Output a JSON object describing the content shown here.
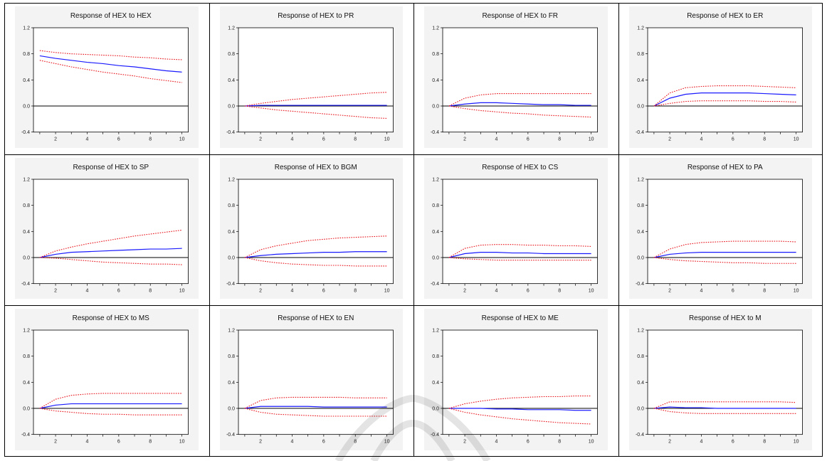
{
  "chart_data": [
    {
      "type": "line",
      "title": "Response of HEX to HEX",
      "x": [
        1,
        2,
        3,
        4,
        5,
        6,
        7,
        8,
        9,
        10
      ],
      "ylim": [
        -0.4,
        1.2
      ],
      "xticks": [
        2,
        4,
        6,
        8,
        10
      ],
      "yticks": [
        -0.4,
        0.0,
        0.4,
        0.8,
        1.2
      ],
      "ytick_labels": [
        "-0.4",
        "0.0",
        "0.4",
        "0.8",
        "1.2"
      ],
      "series": [
        {
          "role": "response",
          "values": [
            0.77,
            0.73,
            0.7,
            0.67,
            0.65,
            0.62,
            0.6,
            0.57,
            0.54,
            0.52
          ]
        },
        {
          "role": "upper",
          "values": [
            0.85,
            0.82,
            0.8,
            0.79,
            0.78,
            0.77,
            0.75,
            0.74,
            0.72,
            0.71
          ]
        },
        {
          "role": "lower",
          "values": [
            0.7,
            0.65,
            0.6,
            0.56,
            0.52,
            0.49,
            0.46,
            0.42,
            0.39,
            0.36
          ]
        }
      ]
    },
    {
      "type": "line",
      "title": "Response of HEX to PR",
      "x": [
        1,
        2,
        3,
        4,
        5,
        6,
        7,
        8,
        9,
        10
      ],
      "ylim": [
        -0.4,
        1.2
      ],
      "xticks": [
        2,
        4,
        6,
        8,
        10
      ],
      "yticks": [
        -0.4,
        0.0,
        0.4,
        0.8,
        1.2
      ],
      "ytick_labels": [
        "-0.4",
        "0.0",
        "0.4",
        "0.8",
        "1.2"
      ],
      "series": [
        {
          "role": "response",
          "values": [
            0.0,
            0.01,
            0.01,
            0.01,
            0.01,
            0.01,
            0.01,
            0.01,
            0.01,
            0.01
          ]
        },
        {
          "role": "upper",
          "values": [
            0.0,
            0.04,
            0.07,
            0.1,
            0.12,
            0.14,
            0.16,
            0.18,
            0.2,
            0.21
          ]
        },
        {
          "role": "lower",
          "values": [
            0.0,
            -0.03,
            -0.06,
            -0.08,
            -0.1,
            -0.12,
            -0.14,
            -0.16,
            -0.18,
            -0.19
          ]
        }
      ]
    },
    {
      "type": "line",
      "title": "Response of HEX to FR",
      "x": [
        1,
        2,
        3,
        4,
        5,
        6,
        7,
        8,
        9,
        10
      ],
      "ylim": [
        -0.4,
        1.2
      ],
      "xticks": [
        2,
        4,
        6,
        8,
        10
      ],
      "yticks": [
        -0.4,
        0.0,
        0.4,
        0.8,
        1.2
      ],
      "ytick_labels": [
        "-0.4",
        "0.0",
        "0.4",
        "0.8",
        "1.2"
      ],
      "series": [
        {
          "role": "response",
          "values": [
            0.0,
            0.03,
            0.05,
            0.05,
            0.04,
            0.03,
            0.02,
            0.02,
            0.01,
            0.01
          ]
        },
        {
          "role": "upper",
          "values": [
            0.0,
            0.12,
            0.17,
            0.19,
            0.19,
            0.19,
            0.19,
            0.19,
            0.19,
            0.19
          ]
        },
        {
          "role": "lower",
          "values": [
            0.0,
            -0.04,
            -0.07,
            -0.09,
            -0.11,
            -0.12,
            -0.14,
            -0.15,
            -0.16,
            -0.17
          ]
        }
      ]
    },
    {
      "type": "line",
      "title": "Response of HEX to ER",
      "x": [
        1,
        2,
        3,
        4,
        5,
        6,
        7,
        8,
        9,
        10
      ],
      "ylim": [
        -0.4,
        1.2
      ],
      "xticks": [
        2,
        4,
        6,
        8,
        10
      ],
      "yticks": [
        -0.4,
        0.0,
        0.4,
        0.8,
        1.2
      ],
      "ytick_labels": [
        "-0.4",
        "0.0",
        "0.4",
        "0.8",
        "1.2"
      ],
      "series": [
        {
          "role": "response",
          "values": [
            0.0,
            0.12,
            0.18,
            0.2,
            0.2,
            0.2,
            0.2,
            0.19,
            0.18,
            0.17
          ]
        },
        {
          "role": "upper",
          "values": [
            0.0,
            0.2,
            0.28,
            0.3,
            0.31,
            0.31,
            0.31,
            0.3,
            0.29,
            0.28
          ]
        },
        {
          "role": "lower",
          "values": [
            0.0,
            0.04,
            0.07,
            0.08,
            0.08,
            0.08,
            0.08,
            0.07,
            0.07,
            0.06
          ]
        }
      ]
    },
    {
      "type": "line",
      "title": "Response of HEX to SP",
      "x": [
        1,
        2,
        3,
        4,
        5,
        6,
        7,
        8,
        9,
        10
      ],
      "ylim": [
        -0.4,
        1.2
      ],
      "xticks": [
        2,
        4,
        6,
        8,
        10
      ],
      "yticks": [
        -0.4,
        0.0,
        0.4,
        0.8,
        1.2
      ],
      "ytick_labels": [
        "-0.4",
        "0.0",
        "0.4",
        "0.8",
        "1.2"
      ],
      "series": [
        {
          "role": "response",
          "values": [
            0.0,
            0.05,
            0.08,
            0.09,
            0.1,
            0.11,
            0.12,
            0.13,
            0.13,
            0.14
          ]
        },
        {
          "role": "upper",
          "values": [
            0.0,
            0.1,
            0.16,
            0.21,
            0.25,
            0.29,
            0.33,
            0.36,
            0.39,
            0.42
          ]
        },
        {
          "role": "lower",
          "values": [
            0.0,
            -0.01,
            -0.03,
            -0.05,
            -0.07,
            -0.08,
            -0.09,
            -0.1,
            -0.1,
            -0.11
          ]
        }
      ]
    },
    {
      "type": "line",
      "title": "Response of HEX to BGM",
      "x": [
        1,
        2,
        3,
        4,
        5,
        6,
        7,
        8,
        9,
        10
      ],
      "ylim": [
        -0.4,
        1.2
      ],
      "xticks": [
        2,
        4,
        6,
        8,
        10
      ],
      "yticks": [
        -0.4,
        0.0,
        0.4,
        0.8,
        1.2
      ],
      "ytick_labels": [
        "-0.4",
        "0.0",
        "0.4",
        "0.8",
        "1.2"
      ],
      "series": [
        {
          "role": "response",
          "values": [
            0.0,
            0.03,
            0.05,
            0.06,
            0.07,
            0.08,
            0.08,
            0.09,
            0.09,
            0.09
          ]
        },
        {
          "role": "upper",
          "values": [
            0.0,
            0.12,
            0.18,
            0.22,
            0.26,
            0.28,
            0.3,
            0.31,
            0.32,
            0.33
          ]
        },
        {
          "role": "lower",
          "values": [
            0.0,
            -0.05,
            -0.08,
            -0.1,
            -0.11,
            -0.12,
            -0.12,
            -0.13,
            -0.13,
            -0.13
          ]
        }
      ]
    },
    {
      "type": "line",
      "title": "Response of HEX to CS",
      "x": [
        1,
        2,
        3,
        4,
        5,
        6,
        7,
        8,
        9,
        10
      ],
      "ylim": [
        -0.4,
        1.2
      ],
      "xticks": [
        2,
        4,
        6,
        8,
        10
      ],
      "yticks": [
        -0.4,
        0.0,
        0.4,
        0.8,
        1.2
      ],
      "ytick_labels": [
        "-0.4",
        "0.0",
        "0.4",
        "0.8",
        "1.2"
      ],
      "series": [
        {
          "role": "response",
          "values": [
            0.0,
            0.06,
            0.08,
            0.08,
            0.07,
            0.07,
            0.06,
            0.06,
            0.06,
            0.06
          ]
        },
        {
          "role": "upper",
          "values": [
            0.0,
            0.14,
            0.19,
            0.2,
            0.2,
            0.19,
            0.19,
            0.18,
            0.18,
            0.17
          ]
        },
        {
          "role": "lower",
          "values": [
            0.0,
            -0.02,
            -0.03,
            -0.04,
            -0.04,
            -0.04,
            -0.04,
            -0.04,
            -0.04,
            -0.04
          ]
        }
      ]
    },
    {
      "type": "line",
      "title": "Response of HEX to PA",
      "x": [
        1,
        2,
        3,
        4,
        5,
        6,
        7,
        8,
        9,
        10
      ],
      "ylim": [
        -0.4,
        1.2
      ],
      "xticks": [
        2,
        4,
        6,
        8,
        10
      ],
      "yticks": [
        -0.4,
        0.0,
        0.4,
        0.8,
        1.2
      ],
      "ytick_labels": [
        "-0.4",
        "0.0",
        "0.4",
        "0.8",
        "1.2"
      ],
      "series": [
        {
          "role": "response",
          "values": [
            0.0,
            0.05,
            0.07,
            0.08,
            0.08,
            0.08,
            0.08,
            0.08,
            0.08,
            0.08
          ]
        },
        {
          "role": "upper",
          "values": [
            0.0,
            0.13,
            0.2,
            0.23,
            0.24,
            0.25,
            0.25,
            0.25,
            0.25,
            0.24
          ]
        },
        {
          "role": "lower",
          "values": [
            0.0,
            -0.03,
            -0.05,
            -0.06,
            -0.07,
            -0.08,
            -0.08,
            -0.09,
            -0.09,
            -0.09
          ]
        }
      ]
    },
    {
      "type": "line",
      "title": "Response of HEX to MS",
      "x": [
        1,
        2,
        3,
        4,
        5,
        6,
        7,
        8,
        9,
        10
      ],
      "ylim": [
        -0.4,
        1.2
      ],
      "xticks": [
        2,
        4,
        6,
        8,
        10
      ],
      "yticks": [
        -0.4,
        0.0,
        0.4,
        0.8,
        1.2
      ],
      "ytick_labels": [
        "-0.4",
        "0.0",
        "0.4",
        "0.8",
        "1.2"
      ],
      "series": [
        {
          "role": "response",
          "values": [
            0.0,
            0.05,
            0.07,
            0.07,
            0.07,
            0.07,
            0.07,
            0.07,
            0.07,
            0.07
          ]
        },
        {
          "role": "upper",
          "values": [
            0.0,
            0.14,
            0.2,
            0.22,
            0.23,
            0.23,
            0.23,
            0.23,
            0.23,
            0.23
          ]
        },
        {
          "role": "lower",
          "values": [
            0.0,
            -0.04,
            -0.06,
            -0.08,
            -0.09,
            -0.09,
            -0.1,
            -0.1,
            -0.1,
            -0.1
          ]
        }
      ]
    },
    {
      "type": "line",
      "title": "Response of HEX to EN",
      "x": [
        1,
        2,
        3,
        4,
        5,
        6,
        7,
        8,
        9,
        10
      ],
      "ylim": [
        -0.4,
        1.2
      ],
      "xticks": [
        2,
        4,
        6,
        8,
        10
      ],
      "yticks": [
        -0.4,
        0.0,
        0.4,
        0.8,
        1.2
      ],
      "ytick_labels": [
        "-0.4",
        "0.0",
        "0.4",
        "0.8",
        "1.2"
      ],
      "series": [
        {
          "role": "response",
          "values": [
            0.0,
            0.03,
            0.03,
            0.03,
            0.03,
            0.02,
            0.02,
            0.02,
            0.02,
            0.02
          ]
        },
        {
          "role": "upper",
          "values": [
            0.0,
            0.12,
            0.16,
            0.17,
            0.17,
            0.17,
            0.17,
            0.16,
            0.16,
            0.16
          ]
        },
        {
          "role": "lower",
          "values": [
            0.0,
            -0.06,
            -0.09,
            -0.1,
            -0.11,
            -0.12,
            -0.12,
            -0.12,
            -0.12,
            -0.12
          ]
        }
      ]
    },
    {
      "type": "line",
      "title": "Response of HEX to ME",
      "x": [
        1,
        2,
        3,
        4,
        5,
        6,
        7,
        8,
        9,
        10
      ],
      "ylim": [
        -0.4,
        1.2
      ],
      "xticks": [
        2,
        4,
        6,
        8,
        10
      ],
      "yticks": [
        -0.4,
        0.0,
        0.4,
        0.8,
        1.2
      ],
      "ytick_labels": [
        "-0.4",
        "0.0",
        "0.4",
        "0.8",
        "1.2"
      ],
      "series": [
        {
          "role": "response",
          "values": [
            0.0,
            0.0,
            0.0,
            -0.01,
            -0.01,
            -0.02,
            -0.02,
            -0.02,
            -0.03,
            -0.03
          ]
        },
        {
          "role": "upper",
          "values": [
            0.0,
            0.07,
            0.11,
            0.14,
            0.16,
            0.17,
            0.18,
            0.18,
            0.19,
            0.19
          ]
        },
        {
          "role": "lower",
          "values": [
            0.0,
            -0.06,
            -0.1,
            -0.13,
            -0.16,
            -0.18,
            -0.2,
            -0.22,
            -0.23,
            -0.24
          ]
        }
      ]
    },
    {
      "type": "line",
      "title": "Response of HEX to M",
      "x": [
        1,
        2,
        3,
        4,
        5,
        6,
        7,
        8,
        9,
        10
      ],
      "ylim": [
        -0.4,
        1.2
      ],
      "xticks": [
        2,
        4,
        6,
        8,
        10
      ],
      "yticks": [
        -0.4,
        0.0,
        0.4,
        0.8,
        1.2
      ],
      "ytick_labels": [
        "-0.4",
        "0.0",
        "0.4",
        "0.8",
        "1.2"
      ],
      "series": [
        {
          "role": "response",
          "values": [
            0.0,
            0.02,
            0.01,
            0.01,
            0.0,
            0.0,
            0.0,
            0.0,
            0.0,
            0.0
          ]
        },
        {
          "role": "upper",
          "values": [
            0.0,
            0.1,
            0.1,
            0.1,
            0.1,
            0.1,
            0.1,
            0.1,
            0.1,
            0.09
          ]
        },
        {
          "role": "lower",
          "values": [
            0.0,
            -0.05,
            -0.07,
            -0.08,
            -0.08,
            -0.08,
            -0.08,
            -0.08,
            -0.08,
            -0.08
          ]
        }
      ]
    }
  ],
  "colors": {
    "response": "#1a1aff",
    "bands": "#e8141c",
    "zero_line": "#000000",
    "frame": "#000000"
  }
}
